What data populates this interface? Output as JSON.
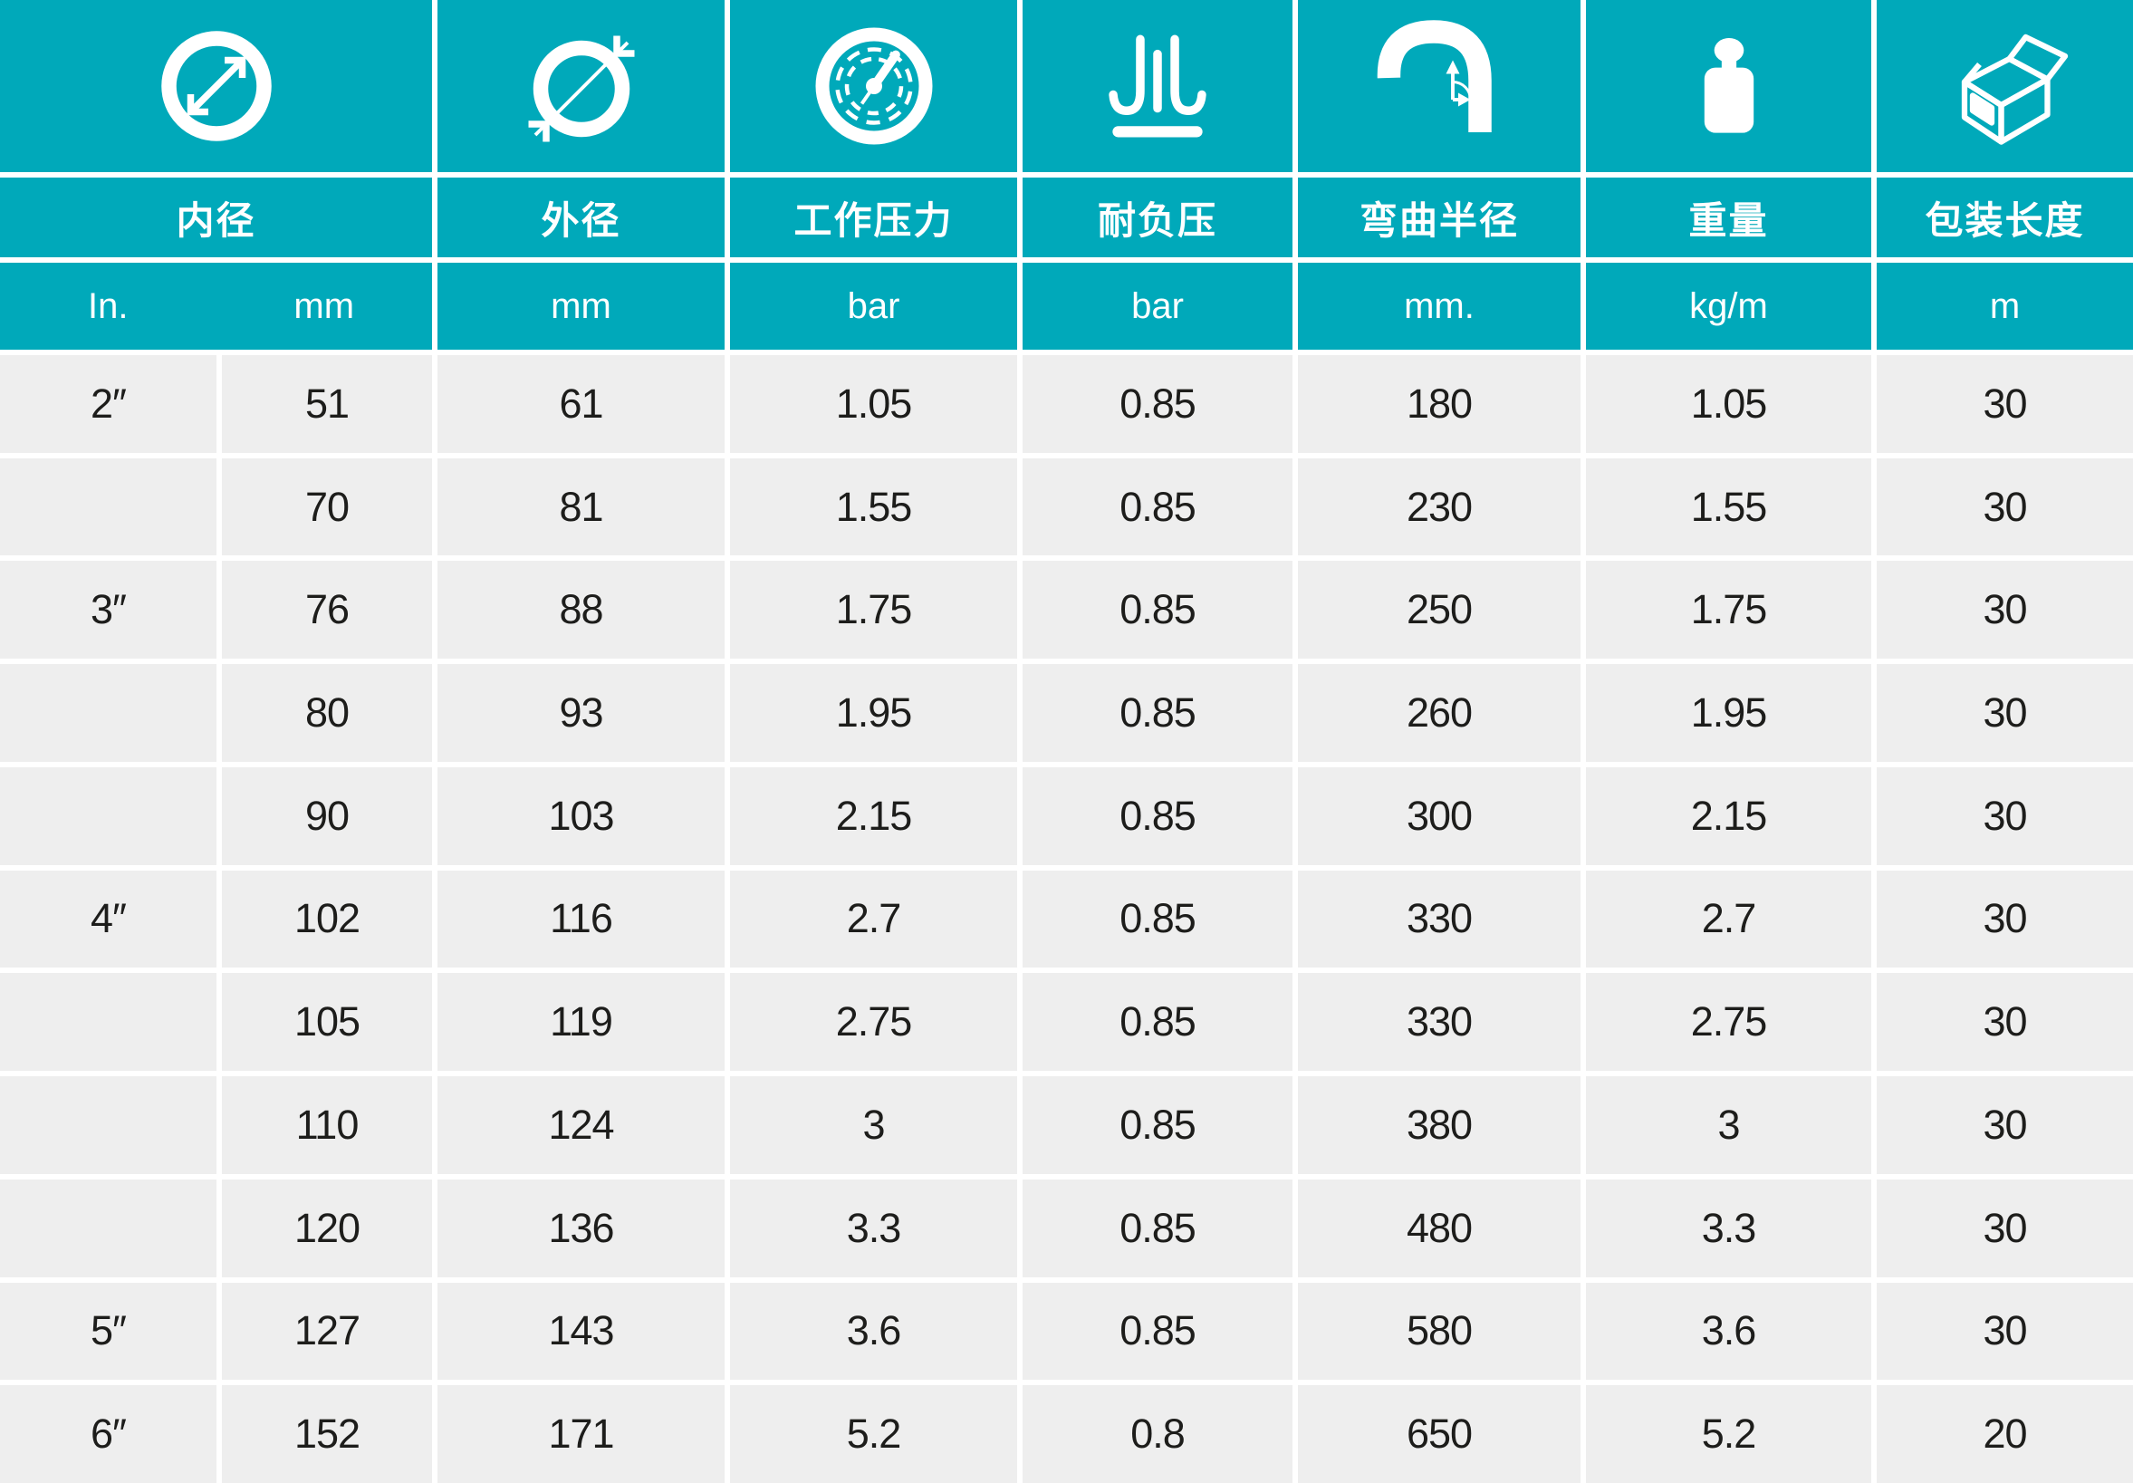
{
  "colors": {
    "header_teal": "#00a9ba",
    "cell_gray": "#eeeeee",
    "divider_white": "#ffffff",
    "body_text": "#1d1d1b",
    "header_text": "#ffffff"
  },
  "icons": [
    "inner-diameter-icon",
    "outer-diameter-icon",
    "pressure-gauge-icon",
    "vacuum-suction-icon",
    "bend-radius-icon",
    "weight-icon",
    "package-box-icon"
  ],
  "chart_data": {
    "type": "table",
    "title": "",
    "columns": [
      {
        "label": "内径",
        "units": [
          "In.",
          "mm"
        ]
      },
      {
        "label": "外径",
        "unit": "mm"
      },
      {
        "label": "工作压力",
        "unit": "bar"
      },
      {
        "label": "耐负压",
        "unit": "bar"
      },
      {
        "label": "弯曲半径",
        "unit": "mm."
      },
      {
        "label": "重量",
        "unit": "kg/m"
      },
      {
        "label": "包装长度",
        "unit": "m"
      }
    ],
    "rows": [
      [
        "2″",
        "51",
        "61",
        "1.05",
        "0.85",
        "180",
        "1.05",
        "30"
      ],
      [
        "",
        "70",
        "81",
        "1.55",
        "0.85",
        "230",
        "1.55",
        "30"
      ],
      [
        "3″",
        "76",
        "88",
        "1.75",
        "0.85",
        "250",
        "1.75",
        "30"
      ],
      [
        "",
        "80",
        "93",
        "1.95",
        "0.85",
        "260",
        "1.95",
        "30"
      ],
      [
        "",
        "90",
        "103",
        "2.15",
        "0.85",
        "300",
        "2.15",
        "30"
      ],
      [
        "4″",
        "102",
        "116",
        "2.7",
        "0.85",
        "330",
        "2.7",
        "30"
      ],
      [
        "",
        "105",
        "119",
        "2.75",
        "0.85",
        "330",
        "2.75",
        "30"
      ],
      [
        "",
        "110",
        "124",
        "3",
        "0.85",
        "380",
        "3",
        "30"
      ],
      [
        "",
        "120",
        "136",
        "3.3",
        "0.85",
        "480",
        "3.3",
        "30"
      ],
      [
        "5″",
        "127",
        "143",
        "3.6",
        "0.85",
        "580",
        "3.6",
        "30"
      ],
      [
        "6″",
        "152",
        "171",
        "5.2",
        "0.8",
        "650",
        "5.2",
        "20"
      ]
    ]
  }
}
